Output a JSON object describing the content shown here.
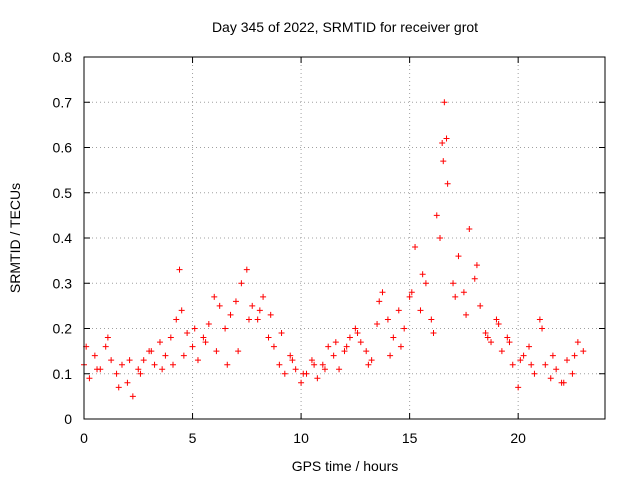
{
  "chart_data": {
    "type": "scatter",
    "title": "Day 345 of 2022, SRMTID for receiver grot",
    "xlabel": "GPS time / hours",
    "ylabel": "SRMTID / TECUs",
    "xlim": [
      0,
      24
    ],
    "ylim": [
      0,
      0.8
    ],
    "x_ticks": [
      0,
      5,
      10,
      15,
      20
    ],
    "x_tick_labels": [
      "0",
      "5",
      "10",
      "15",
      "20"
    ],
    "y_ticks": [
      0,
      0.1,
      0.2,
      0.3,
      0.4,
      0.5,
      0.6,
      0.7,
      0.8
    ],
    "y_tick_labels": [
      "0",
      "0.1",
      "0.2",
      "0.3",
      "0.4",
      "0.5",
      "0.6",
      "0.7",
      "0.8"
    ],
    "grid": true,
    "marker": "plus",
    "series": [
      {
        "name": "SRMTID",
        "color": "#ff0000",
        "x": [
          0.0,
          0.25,
          0.5,
          0.75,
          1.0,
          1.25,
          1.5,
          1.75,
          2.0,
          2.25,
          2.5,
          2.75,
          3.0,
          3.25,
          3.5,
          3.75,
          4.0,
          4.25,
          4.4,
          4.5,
          4.75,
          5.0,
          5.25,
          5.5,
          5.75,
          6.0,
          6.25,
          6.5,
          6.75,
          7.0,
          7.25,
          7.5,
          7.75,
          8.0,
          8.25,
          8.5,
          8.75,
          9.0,
          9.25,
          9.5,
          9.75,
          10.0,
          10.25,
          10.5,
          10.75,
          11.0,
          11.25,
          11.5,
          11.75,
          12.0,
          12.25,
          12.5,
          12.75,
          13.0,
          13.25,
          13.5,
          13.75,
          14.0,
          14.25,
          14.5,
          14.75,
          15.0,
          15.25,
          15.5,
          15.75,
          16.0,
          16.25,
          16.5,
          16.6,
          16.75,
          17.0,
          17.25,
          17.5,
          17.75,
          18.0,
          18.25,
          18.5,
          18.75,
          19.0,
          19.25,
          19.5,
          19.75,
          20.0,
          20.25,
          20.5,
          20.75,
          21.0,
          21.25,
          21.5,
          21.75,
          22.0,
          22.25,
          22.5,
          22.75,
          23.0,
          0.1,
          0.6,
          1.1,
          1.6,
          2.1,
          2.6,
          3.1,
          3.6,
          4.1,
          4.6,
          5.1,
          5.6,
          6.1,
          6.6,
          7.1,
          7.6,
          8.1,
          8.6,
          9.1,
          9.6,
          10.1,
          10.6,
          11.1,
          11.6,
          12.1,
          12.6,
          13.1,
          13.6,
          14.1,
          14.6,
          15.1,
          15.6,
          16.1,
          16.4,
          16.55,
          16.7,
          17.1,
          17.6,
          18.1,
          18.6,
          19.1,
          19.6,
          20.1,
          20.6,
          21.1,
          21.6,
          22.1,
          22.6
        ],
        "y": [
          0.12,
          0.09,
          0.14,
          0.11,
          0.16,
          0.13,
          0.1,
          0.12,
          0.08,
          0.05,
          0.11,
          0.13,
          0.15,
          0.12,
          0.17,
          0.14,
          0.18,
          0.22,
          0.33,
          0.24,
          0.19,
          0.16,
          0.13,
          0.18,
          0.21,
          0.27,
          0.25,
          0.2,
          0.23,
          0.26,
          0.3,
          0.33,
          0.25,
          0.22,
          0.27,
          0.18,
          0.16,
          0.12,
          0.1,
          0.14,
          0.11,
          0.08,
          0.1,
          0.13,
          0.09,
          0.12,
          0.16,
          0.14,
          0.11,
          0.15,
          0.18,
          0.2,
          0.17,
          0.15,
          0.13,
          0.21,
          0.28,
          0.22,
          0.18,
          0.24,
          0.2,
          0.27,
          0.38,
          0.24,
          0.3,
          0.22,
          0.45,
          0.61,
          0.7,
          0.52,
          0.3,
          0.36,
          0.28,
          0.42,
          0.31,
          0.25,
          0.19,
          0.17,
          0.22,
          0.15,
          0.18,
          0.12,
          0.07,
          0.14,
          0.16,
          0.1,
          0.22,
          0.12,
          0.09,
          0.11,
          0.08,
          0.13,
          0.1,
          0.17,
          0.15,
          0.16,
          0.11,
          0.18,
          0.07,
          0.13,
          0.1,
          0.15,
          0.11,
          0.12,
          0.14,
          0.2,
          0.17,
          0.15,
          0.12,
          0.15,
          0.22,
          0.24,
          0.23,
          0.19,
          0.13,
          0.1,
          0.12,
          0.11,
          0.17,
          0.16,
          0.19,
          0.12,
          0.26,
          0.14,
          0.16,
          0.28,
          0.32,
          0.19,
          0.4,
          0.57,
          0.62,
          0.27,
          0.23,
          0.34,
          0.18,
          0.21,
          0.17,
          0.13,
          0.12,
          0.2,
          0.14,
          0.08,
          0.14
        ]
      }
    ]
  }
}
